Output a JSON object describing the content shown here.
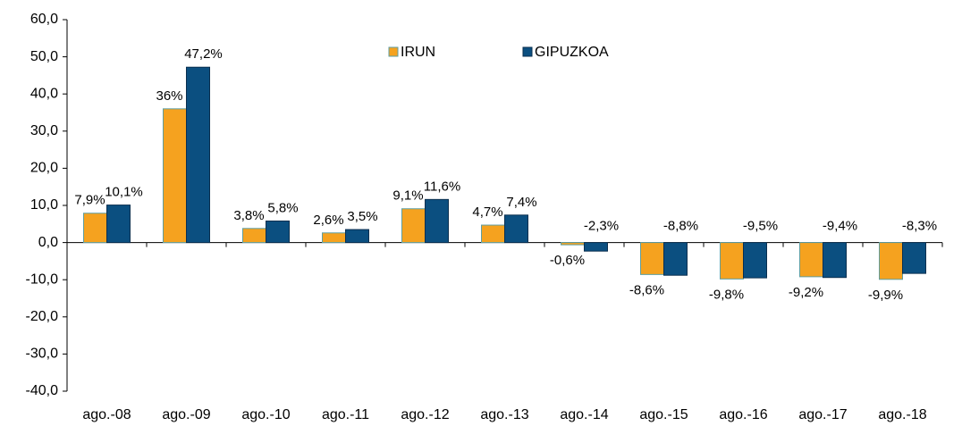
{
  "chart_data": {
    "type": "bar",
    "categories": [
      "ago.-08",
      "ago.-09",
      "ago.-10",
      "ago.-11",
      "ago.-12",
      "ago.-13",
      "ago.-14",
      "ago.-15",
      "ago.-16",
      "ago.-17",
      "ago.-18"
    ],
    "series": [
      {
        "name": "IRUN",
        "color": "#f5a21f",
        "values": [
          7.9,
          36,
          3.8,
          2.6,
          9.1,
          4.7,
          -0.6,
          -8.6,
          -9.8,
          -9.2,
          -9.9
        ],
        "value_labels": [
          "7,9%",
          "36%",
          "3,8%",
          "2,6%",
          "9,1%",
          "4,7%",
          "-0,6%",
          "-8,6%",
          "-9,8%",
          "-9,2%",
          "-9,9%"
        ]
      },
      {
        "name": "GIPUZKOA",
        "color": "#0b4f80",
        "values": [
          10.1,
          47.2,
          5.8,
          3.5,
          11.6,
          7.4,
          -2.3,
          -8.8,
          -9.5,
          -9.4,
          -8.3
        ],
        "value_labels": [
          "10,1%",
          "47,2%",
          "5,8%",
          "3,5%",
          "11,6%",
          "7,4%",
          "-2,3%",
          "-8,8%",
          "-9,5%",
          "-9,4%",
          "-8,3%"
        ]
      }
    ],
    "ylim": [
      -40,
      60
    ],
    "yticks": [
      {
        "value": -40,
        "label": "-40,0"
      },
      {
        "value": -30,
        "label": "-30,0"
      },
      {
        "value": -20,
        "label": "-20,0"
      },
      {
        "value": -10,
        "label": "-10,0"
      },
      {
        "value": 0,
        "label": "0,0"
      },
      {
        "value": 10,
        "label": "10,0"
      },
      {
        "value": 20,
        "label": "20,0"
      },
      {
        "value": 30,
        "label": "30,0"
      },
      {
        "value": 40,
        "label": "40,0"
      },
      {
        "value": 50,
        "label": "50,0"
      },
      {
        "value": 60,
        "label": "60,0"
      }
    ],
    "legend": "top"
  }
}
